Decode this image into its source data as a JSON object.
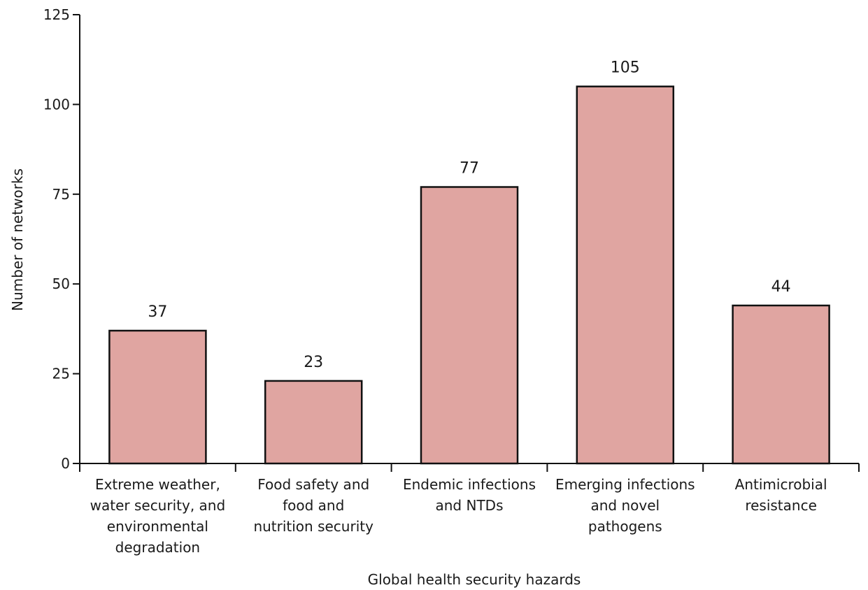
{
  "chart_data": {
    "type": "bar",
    "title": "",
    "xlabel": "Global health security hazards",
    "ylabel": "Number of networks",
    "ylim": [
      0,
      125
    ],
    "yticks": [
      0,
      25,
      50,
      75,
      100,
      125
    ],
    "grid": false,
    "legend": "none",
    "bar_color": "#e0a5a1",
    "bar_edge_color": "#111111",
    "categories": [
      [
        "Extreme weather,",
        "water security, and",
        "environmental",
        "degradation"
      ],
      [
        "Food safety and",
        "food and",
        "nutrition security"
      ],
      [
        "Endemic infections",
        "and NTDs"
      ],
      [
        "Emerging infections",
        "and novel",
        "pathogens"
      ],
      [
        "Antimicrobial",
        "resistance"
      ]
    ],
    "values": [
      37,
      23,
      77,
      105,
      44
    ],
    "value_labels": [
      "37",
      "23",
      "77",
      "105",
      "44"
    ]
  }
}
